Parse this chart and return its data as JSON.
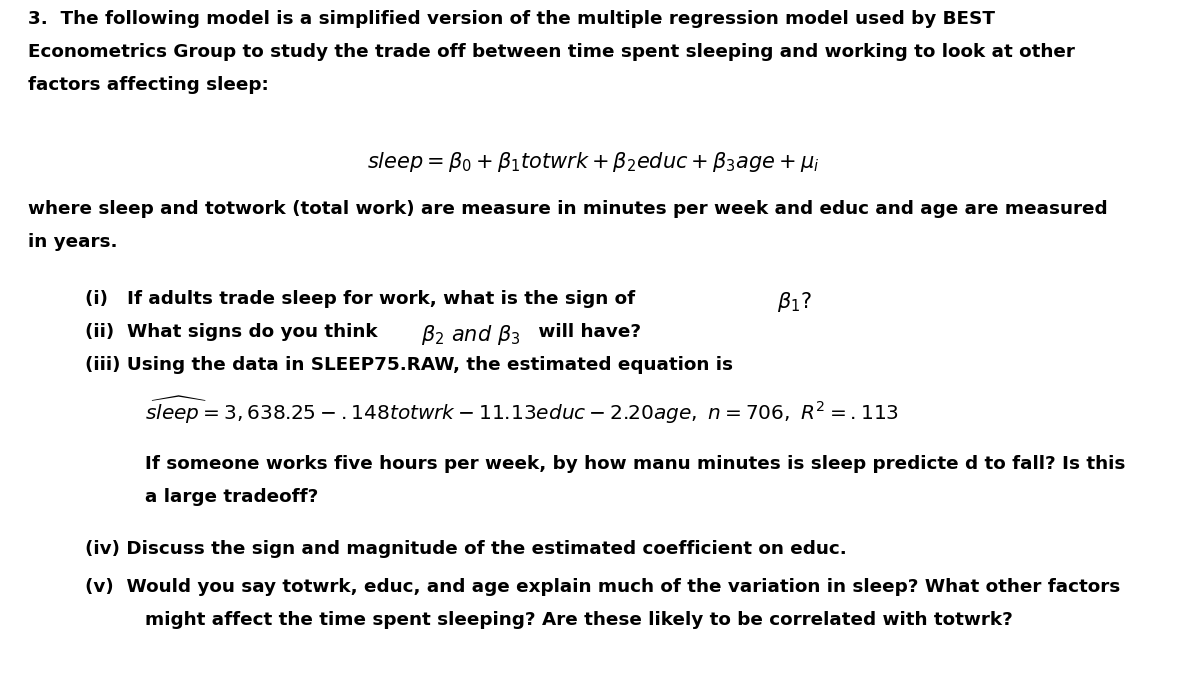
{
  "bg_color": "#ffffff",
  "text_color": "#000000",
  "fig_width": 11.87,
  "fig_height": 6.76,
  "dpi": 100,
  "fs_bold": 13.2,
  "fs_math": 15.0,
  "fs_eq": 14.5
}
